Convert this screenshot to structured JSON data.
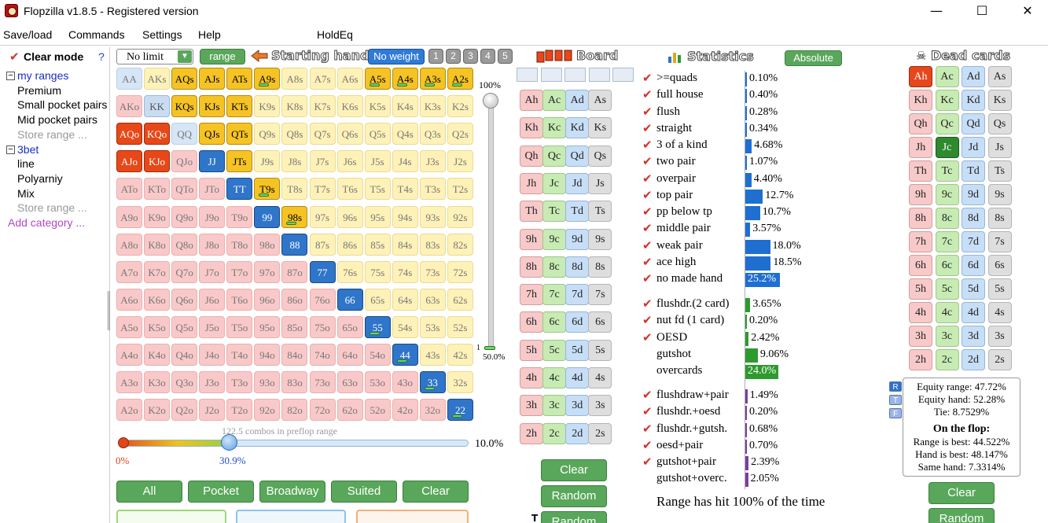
{
  "window": {
    "title": "Flopzilla v1.8.5 - Registered version",
    "minimize": "—",
    "maximize": "☐",
    "close": "✕"
  },
  "menu": [
    "Save/load",
    "Commands",
    "Settings",
    "Help",
    "HoldEq"
  ],
  "left_panel": {
    "clear_mode": "Clear mode",
    "help": "?",
    "tree": [
      {
        "label": "my ranges",
        "kind": "group"
      },
      {
        "label": "Premium",
        "kind": "item"
      },
      {
        "label": "Small pocket pairs",
        "kind": "item"
      },
      {
        "label": "Mid pocket pairs",
        "kind": "item"
      },
      {
        "label": "Store range ...",
        "kind": "muted"
      },
      {
        "label": "3bet",
        "kind": "group"
      },
      {
        "label": "line",
        "kind": "item"
      },
      {
        "label": "Polyarniy",
        "kind": "item"
      },
      {
        "label": "Mix",
        "kind": "item"
      },
      {
        "label": "Store range ...",
        "kind": "muted"
      },
      {
        "label": "Add category ...",
        "kind": "link"
      }
    ]
  },
  "range": {
    "limit_select": "No limit",
    "range_button": "range",
    "starting_hand_header": "Starting hand",
    "no_weight_button": "No weight",
    "weight_buttons": [
      "1",
      "2",
      "3",
      "4",
      "5"
    ],
    "pct_top": "100%",
    "pct_slider_bottom_label": "1",
    "pct_slider_bottom": "50.0%",
    "combos_text": "122.5 combos in preflop range",
    "slider_start": "0%",
    "slider_value": "30.9%",
    "slider_end": "10.0%",
    "buttons": [
      "All",
      "Pocket",
      "Broadway",
      "Suited",
      "Clear"
    ],
    "ranks": [
      "A",
      "K",
      "Q",
      "J",
      "T",
      "9",
      "8",
      "7",
      "6",
      "5",
      "4",
      "3",
      "2"
    ],
    "selected": {
      "AQs": "y",
      "AJs": "y",
      "ATs": "y",
      "A9s": "yw",
      "A5s": "yw",
      "A4s": "yw",
      "A3s": "yw",
      "A2s": "yw",
      "KQs": "y",
      "KJs": "y",
      "KTs": "y",
      "QJs": "y",
      "QTs": "y",
      "JTs": "y",
      "T9s": "yw",
      "98s": "yw",
      "AQo": "r",
      "KQo": "r",
      "AJo": "r",
      "KJo": "r",
      "KK": "lb",
      "JJ": "b",
      "TT": "b",
      "99": "b",
      "88": "b",
      "77": "b",
      "66": "b",
      "55": "bw",
      "44": "bw",
      "33": "bw",
      "22": "bw"
    }
  },
  "board": {
    "header": "Board",
    "buttons": [
      "Clear",
      "Random",
      "Random"
    ],
    "ranks": [
      "A",
      "K",
      "Q",
      "J",
      "T",
      "9",
      "8",
      "7",
      "6",
      "5",
      "4",
      "3",
      "2"
    ],
    "suits": [
      "h",
      "c",
      "d",
      "s"
    ]
  },
  "statistics": {
    "header": "Statistics",
    "absolute_button": "Absolute",
    "rows1": [
      {
        "label": ">=quads",
        "value": "0.10%",
        "pct": 0.1
      },
      {
        "label": "full house",
        "value": "0.40%",
        "pct": 0.4
      },
      {
        "label": "flush",
        "value": "0.28%",
        "pct": 0.28
      },
      {
        "label": "straight",
        "value": "0.34%",
        "pct": 0.34
      },
      {
        "label": "3 of a kind",
        "value": "4.68%",
        "pct": 4.68
      },
      {
        "label": "two pair",
        "value": "1.07%",
        "pct": 1.07
      },
      {
        "label": "overpair",
        "value": "4.40%",
        "pct": 4.4
      },
      {
        "label": "top pair",
        "value": "12.7%",
        "pct": 12.7
      },
      {
        "label": "pp below tp",
        "value": "10.7%",
        "pct": 10.7
      },
      {
        "label": "middle pair",
        "value": "3.57%",
        "pct": 3.57
      },
      {
        "label": "weak pair",
        "value": "18.0%",
        "pct": 18.0
      },
      {
        "label": "ace high",
        "value": "18.5%",
        "pct": 18.5
      },
      {
        "label": "no made hand",
        "value": "25.2%",
        "pct": 25.2
      }
    ],
    "rows2": [
      {
        "label": "flushdr.(2 card)",
        "value": "3.65%",
        "pct": 3.65,
        "check": true
      },
      {
        "label": "nut fd (1 card)",
        "value": "0.20%",
        "pct": 0.2,
        "check": true
      },
      {
        "label": "OESD",
        "value": "2.42%",
        "pct": 2.42,
        "check": true
      },
      {
        "label": "gutshot",
        "value": "9.06%",
        "pct": 9.06,
        "check": false
      },
      {
        "label": "overcards",
        "value": "24.0%",
        "pct": 24.0,
        "check": false
      }
    ],
    "rows3": [
      {
        "label": "flushdraw+pair",
        "value": "1.49%",
        "pct": 1.49,
        "check": true
      },
      {
        "label": "flushdr.+oesd",
        "value": "0.20%",
        "pct": 0.2,
        "check": true
      },
      {
        "label": "flushdr.+gutsh.",
        "value": "0.68%",
        "pct": 0.68,
        "check": true
      },
      {
        "label": "oesd+pair",
        "value": "0.70%",
        "pct": 0.7,
        "check": true
      },
      {
        "label": "gutshot+pair",
        "value": "2.39%",
        "pct": 2.39,
        "check": true
      },
      {
        "label": "gutshot+overc.",
        "value": "2.05%",
        "pct": 2.05,
        "check": false
      }
    ],
    "footer": "Range has hit 100% of the time",
    "colors": {
      "blue": "#1f6fd1",
      "green": "#2e9a2e",
      "purple": "#7a3ea0"
    }
  },
  "dead": {
    "header": "Dead cards",
    "selected": [
      "Ah",
      "Jc"
    ],
    "equity": {
      "range": "Equity range: 47.72%",
      "hand": "Equity hand: 52.28%",
      "tie": "Tie: 8.7529%",
      "on_flop": "On the flop:",
      "range_best": "Range is best: 44.522%",
      "hand_best": "Hand is best: 48.147%",
      "same": "Same hand: 7.3314%"
    },
    "rtf": [
      "R",
      "T",
      "F"
    ],
    "buttons": [
      "Clear",
      "Random"
    ]
  }
}
